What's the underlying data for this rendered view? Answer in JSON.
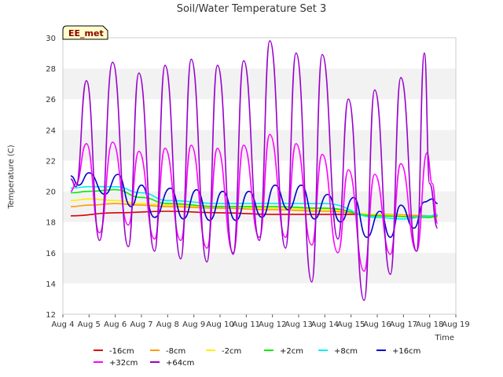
{
  "chart_data": {
    "type": "line",
    "title": "Soil/Water Temperature Set 3",
    "xlabel": "Time",
    "ylabel": "Temperature (C)",
    "badge": "EE_met",
    "ylim": [
      12,
      30
    ],
    "xlim": [
      4,
      19
    ],
    "yticks": [
      12,
      14,
      16,
      18,
      20,
      22,
      24,
      26,
      28,
      30
    ],
    "xticks": [
      {
        "v": 4,
        "label": "Aug 4"
      },
      {
        "v": 5,
        "label": "Aug 5"
      },
      {
        "v": 6,
        "label": "Aug 6"
      },
      {
        "v": 7,
        "label": "Aug 7"
      },
      {
        "v": 8,
        "label": "Aug 8"
      },
      {
        "v": 9,
        "label": "Aug 9"
      },
      {
        "v": 10,
        "label": "Aug 10"
      },
      {
        "v": 11,
        "label": "Aug 11"
      },
      {
        "v": 12,
        "label": "Aug 12"
      },
      {
        "v": 13,
        "label": "Aug 13"
      },
      {
        "v": 14,
        "label": "Aug 14"
      },
      {
        "v": 15,
        "label": "Aug 15"
      },
      {
        "v": 16,
        "label": "Aug 16"
      },
      {
        "v": 17,
        "label": "Aug 17"
      },
      {
        "v": 18,
        "label": "Aug 18"
      },
      {
        "v": 19,
        "label": "Aug 19"
      }
    ],
    "grid": "horizontal alternating bands",
    "legend_position": "bottom",
    "series": [
      {
        "name": "-16cm",
        "color": "#dd0000",
        "x": [
          4.3,
          6,
          8,
          10,
          12,
          14,
          16,
          18,
          18.3
        ],
        "values": [
          18.4,
          18.6,
          18.7,
          18.6,
          18.5,
          18.5,
          18.5,
          18.4,
          18.4
        ]
      },
      {
        "name": "-8cm",
        "color": "#ff9900",
        "x": [
          4.3,
          5,
          6,
          7,
          8,
          10,
          12,
          14,
          16,
          18,
          18.3
        ],
        "values": [
          19.0,
          19.1,
          19.2,
          19.1,
          19.0,
          18.9,
          18.8,
          18.7,
          18.5,
          18.4,
          18.4
        ]
      },
      {
        "name": "-2cm",
        "color": "#ffee00",
        "x": [
          4.3,
          5,
          6,
          7,
          8,
          10,
          12,
          14,
          16,
          18,
          18.3
        ],
        "values": [
          19.4,
          19.5,
          19.4,
          19.2,
          19.1,
          19.0,
          18.9,
          18.8,
          18.5,
          18.3,
          18.3
        ]
      },
      {
        "name": "+2cm",
        "color": "#00ee00",
        "x": [
          4.3,
          5,
          6,
          7,
          8,
          10,
          12,
          14,
          16,
          18,
          18.3
        ],
        "values": [
          19.9,
          20.0,
          20.1,
          19.6,
          19.2,
          19.0,
          19.0,
          18.9,
          18.4,
          18.3,
          18.4
        ]
      },
      {
        "name": "+8cm",
        "color": "#00eeee",
        "x": [
          4.3,
          5,
          6,
          7,
          8,
          10,
          12,
          14,
          16,
          17,
          18,
          18.3
        ],
        "values": [
          20.2,
          20.3,
          20.3,
          19.9,
          19.4,
          19.2,
          19.2,
          19.2,
          18.3,
          18.2,
          18.4,
          18.5
        ]
      },
      {
        "name": "+16cm",
        "color": "#0000cc",
        "x": [
          4.3,
          4.6,
          5.0,
          5.6,
          6.1,
          6.6,
          7.0,
          7.5,
          8.1,
          8.6,
          9.1,
          9.6,
          10.1,
          10.6,
          11.1,
          11.6,
          12.1,
          12.6,
          13.1,
          13.6,
          14.1,
          14.6,
          15.1,
          15.6,
          16.1,
          16.5,
          16.9,
          17.4,
          17.8,
          18.1,
          18.3
        ],
        "values": [
          21.0,
          20.4,
          21.2,
          19.8,
          21.1,
          19.0,
          20.4,
          18.3,
          20.2,
          18.2,
          20.1,
          18.1,
          20.0,
          18.1,
          20.0,
          18.3,
          20.4,
          18.8,
          20.4,
          18.2,
          19.8,
          18.0,
          19.6,
          17.0,
          18.7,
          17.0,
          19.1,
          17.6,
          19.3,
          19.5,
          19.2
        ]
      },
      {
        "name": "+32cm",
        "color": "#ff00ff",
        "x": [
          4.3,
          4.5,
          4.9,
          5.4,
          5.9,
          6.5,
          6.9,
          7.5,
          7.9,
          8.5,
          8.9,
          9.5,
          9.9,
          10.5,
          10.9,
          11.5,
          11.9,
          12.5,
          12.9,
          13.5,
          13.9,
          14.5,
          14.9,
          15.5,
          15.9,
          16.5,
          16.9,
          17.5,
          17.9,
          18.1,
          18.3
        ],
        "values": [
          20.0,
          20.5,
          23.1,
          17.3,
          23.2,
          17.8,
          22.6,
          16.9,
          22.8,
          16.8,
          23.0,
          16.3,
          22.8,
          16.0,
          23.0,
          17.0,
          23.7,
          17.0,
          23.1,
          16.5,
          22.4,
          16.0,
          21.4,
          14.8,
          21.1,
          15.9,
          21.8,
          16.1,
          22.5,
          20.5,
          17.9
        ]
      },
      {
        "name": "+64cm",
        "color": "#9900cc",
        "x": [
          4.3,
          4.5,
          4.9,
          5.4,
          5.9,
          6.5,
          6.9,
          7.5,
          7.9,
          8.5,
          8.9,
          9.5,
          9.9,
          10.5,
          10.9,
          11.5,
          11.9,
          12.5,
          12.9,
          13.5,
          13.9,
          14.5,
          14.9,
          15.5,
          15.9,
          16.5,
          16.9,
          17.5,
          17.8,
          18.0,
          18.3
        ],
        "values": [
          20.8,
          20.3,
          27.2,
          16.8,
          28.4,
          16.4,
          27.7,
          16.1,
          28.2,
          15.6,
          28.6,
          15.4,
          28.2,
          15.9,
          28.5,
          16.8,
          29.8,
          16.3,
          29.0,
          14.1,
          28.9,
          16.9,
          26.0,
          12.9,
          26.6,
          14.6,
          27.4,
          16.1,
          29.0,
          20.5,
          17.6
        ]
      }
    ]
  }
}
